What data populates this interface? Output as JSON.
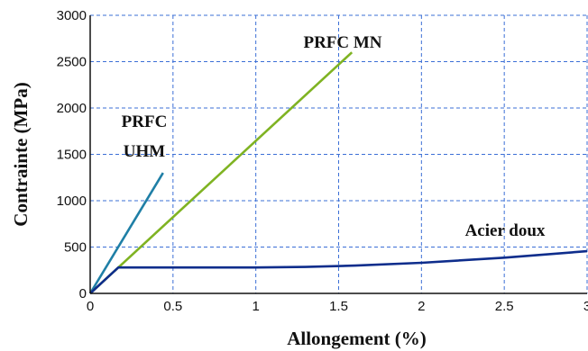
{
  "chart_data": {
    "type": "line",
    "xlabel": "Allongement (%)",
    "ylabel": "Contrainte (MPa)",
    "xlim": [
      0,
      3
    ],
    "ylim": [
      0,
      3000
    ],
    "x_ticks": [
      "0",
      "0.5",
      "1",
      "1.5",
      "2",
      "2.5",
      "3"
    ],
    "y_ticks": [
      "0",
      "500",
      "1000",
      "1500",
      "2000",
      "2500",
      "3000"
    ],
    "grid": true,
    "series": [
      {
        "name": "PRFC UHM",
        "label_lines": [
          "PRFC",
          "UHM"
        ],
        "color": "#1f7fa6",
        "points": [
          [
            0,
            0
          ],
          [
            0.44,
            1300
          ]
        ]
      },
      {
        "name": "PRFC  MN",
        "label_lines": [
          "PRFC  MN"
        ],
        "color": "#7fb322",
        "points": [
          [
            0,
            0
          ],
          [
            1.58,
            2600
          ]
        ]
      },
      {
        "name": "Acier doux",
        "label_lines": [
          "Acier doux"
        ],
        "color": "#0e2d8c",
        "points": [
          [
            0,
            0
          ],
          [
            0.17,
            280
          ],
          [
            0.5,
            280
          ],
          [
            1.0,
            280
          ],
          [
            1.3,
            285
          ],
          [
            1.6,
            300
          ],
          [
            2.0,
            330
          ],
          [
            2.5,
            385
          ],
          [
            3.0,
            455
          ]
        ]
      }
    ]
  }
}
